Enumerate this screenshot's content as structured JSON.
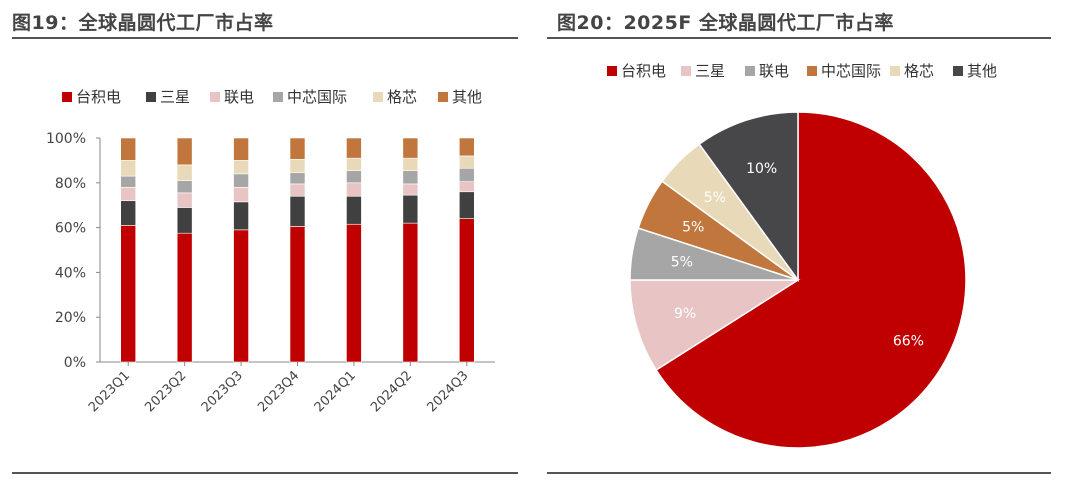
{
  "left": {
    "title": "图19：全球晶圆代工厂市占率"
  },
  "right": {
    "title": "图20：2025F 全球晶圆代工厂市占率"
  },
  "colors": {
    "tsmc": "#C00000",
    "samsung": "#404040",
    "umc": "#E8C4C4",
    "smic": "#A6A6A6",
    "globalfoundries": "#E8D9B8",
    "others": "#C0763C",
    "pie_smic": "#C0763C",
    "pie_others": "#47474A"
  },
  "chart_data": [
    {
      "type": "bar",
      "stacked": true,
      "title": "图19：全球晶圆代工厂市占率",
      "categories": [
        "2023Q1",
        "2023Q2",
        "2023Q3",
        "2023Q4",
        "2024Q1",
        "2024Q2",
        "2024Q3"
      ],
      "ylim": [
        0,
        100
      ],
      "yticks": [
        "0%",
        "20%",
        "40%",
        "60%",
        "80%",
        "100%"
      ],
      "legend_position": "top",
      "series": [
        {
          "name": "台积电",
          "color_key": "tsmc",
          "values": [
            61,
            57.5,
            59,
            60.5,
            61.5,
            62,
            64
          ]
        },
        {
          "name": "三星",
          "color_key": "samsung",
          "values": [
            11,
            11.5,
            12.5,
            13.5,
            12.5,
            12.5,
            12
          ]
        },
        {
          "name": "联电",
          "color_key": "umc",
          "values": [
            6,
            6.5,
            6.5,
            5.5,
            6,
            5,
            4.5
          ]
        },
        {
          "name": "中芯国际",
          "color_key": "smic",
          "values": [
            5,
            5.5,
            6,
            5,
            5.5,
            6,
            6
          ]
        },
        {
          "name": "格芯",
          "color_key": "globalfoundries",
          "values": [
            7,
            7,
            6,
            6,
            5.5,
            5.5,
            5.5
          ]
        },
        {
          "name": "其他",
          "color_key": "others",
          "values": [
            10,
            12,
            10,
            9.5,
            9,
            9,
            8
          ]
        }
      ]
    },
    {
      "type": "pie",
      "title": "图20：2025F 全球晶圆代工厂市占率",
      "legend_position": "top",
      "start_angle_deg": 0,
      "direction": "clockwise",
      "slices": [
        {
          "name": "台积电",
          "value": 66,
          "label": "66%",
          "color_key": "tsmc"
        },
        {
          "name": "三星",
          "value": 9,
          "label": "9%",
          "color_key": "umc"
        },
        {
          "name": "联电",
          "value": 5,
          "label": "5%",
          "color_key": "smic"
        },
        {
          "name": "中芯国际",
          "value": 5,
          "label": "5%",
          "color_key": "pie_smic"
        },
        {
          "name": "格芯",
          "value": 5,
          "label": "5%",
          "color_key": "globalfoundries"
        },
        {
          "name": "其他",
          "value": 10,
          "label": "10%",
          "color_key": "pie_others"
        }
      ]
    }
  ]
}
